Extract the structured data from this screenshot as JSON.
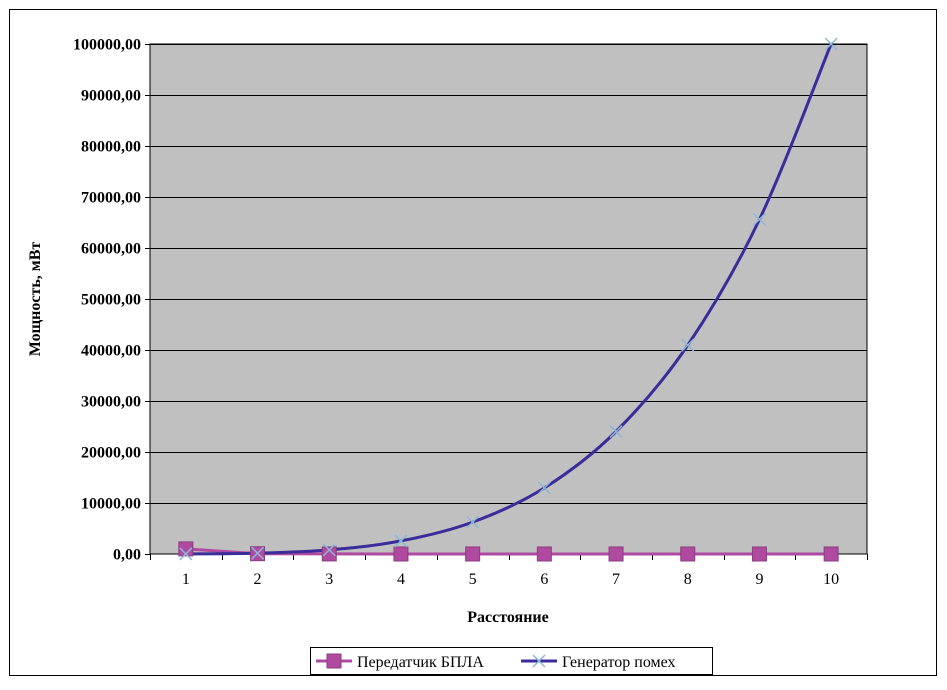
{
  "chart_data": {
    "type": "line",
    "title": "",
    "xlabel": "Расстояние",
    "ylabel": "Мощность, мВт",
    "categories": [
      "1",
      "2",
      "3",
      "4",
      "5",
      "6",
      "7",
      "8",
      "9",
      "10"
    ],
    "ylim": [
      0,
      100000
    ],
    "y_ticks": [
      "0,00",
      "10000,00",
      "20000,00",
      "30000,00",
      "40000,00",
      "50000,00",
      "60000,00",
      "70000,00",
      "80000,00",
      "90000,00",
      "100000,00"
    ],
    "grid": true,
    "legend_position": "bottom",
    "plot_background": "#c0c0c0",
    "series": [
      {
        "name": "Передатчик БПЛА",
        "color": "#b04aa0",
        "marker": "square",
        "values": [
          1000,
          62.5,
          12.35,
          3.9,
          1.6,
          0.77,
          0.42,
          0.24,
          0.15,
          0.1
        ]
      },
      {
        "name": "Генератор помех",
        "color": "#3a2c9a",
        "marker_color": "#8ab8d8",
        "marker": "x",
        "values": [
          10,
          160,
          810,
          2560,
          6250,
          12960,
          24010,
          40960,
          65610,
          100000
        ]
      }
    ]
  }
}
